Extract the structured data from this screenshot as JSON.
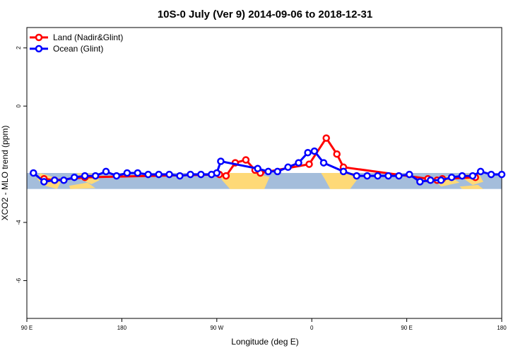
{
  "chart_data": {
    "type": "line",
    "title": "10S-0 July (Ver 9)   2014-09-06 to 2018-12-31",
    "xlabel": "Longitude (deg E)",
    "ylabel": "XCO2 - MLO trend (ppm)",
    "xlim": [
      90,
      450
    ],
    "ylim": [
      -7.3,
      2.7
    ],
    "x_ticks": [
      {
        "value": 90,
        "label": "90 E"
      },
      {
        "value": 162,
        "label": "180"
      },
      {
        "value": 234,
        "label": "90 W"
      },
      {
        "value": 306,
        "label": "0"
      },
      {
        "value": 378,
        "label": "90 E"
      },
      {
        "value": 450,
        "label": "180"
      }
    ],
    "y_ticks": [
      {
        "value": 2,
        "label": "2"
      },
      {
        "value": 0,
        "label": "0"
      },
      {
        "value": -4,
        "label": "-4"
      },
      {
        "value": -6,
        "label": "-6"
      }
    ],
    "grid": false,
    "legend_position": "top-left",
    "series": [
      {
        "name": "Land (Nadir&Glint)",
        "color": "#ff0000",
        "points": [
          [
            103,
            -2.5
          ],
          [
            111,
            -2.55
          ],
          [
            134,
            -2.45
          ],
          [
            236,
            -2.35
          ],
          [
            241,
            -2.4
          ],
          [
            248,
            -1.95
          ],
          [
            256,
            -1.85
          ],
          [
            263,
            -2.2
          ],
          [
            267,
            -2.3
          ],
          [
            304,
            -2.0
          ],
          [
            317,
            -1.1
          ],
          [
            325,
            -1.65
          ],
          [
            330,
            -2.1
          ],
          [
            394,
            -2.5
          ],
          [
            401,
            -2.55
          ],
          [
            405,
            -2.5
          ],
          [
            430,
            -2.45
          ]
        ]
      },
      {
        "name": "Ocean (Glint)",
        "color": "#0000ff",
        "points": [
          [
            95,
            -2.3
          ],
          [
            103,
            -2.6
          ],
          [
            111,
            -2.55
          ],
          [
            118,
            -2.55
          ],
          [
            126,
            -2.45
          ],
          [
            134,
            -2.4
          ],
          [
            142,
            -2.4
          ],
          [
            150,
            -2.25
          ],
          [
            158,
            -2.4
          ],
          [
            166,
            -2.3
          ],
          [
            174,
            -2.3
          ],
          [
            182,
            -2.35
          ],
          [
            190,
            -2.35
          ],
          [
            198,
            -2.35
          ],
          [
            206,
            -2.4
          ],
          [
            214,
            -2.35
          ],
          [
            222,
            -2.35
          ],
          [
            230,
            -2.35
          ],
          [
            234,
            -2.3
          ],
          [
            237,
            -1.9
          ],
          [
            265,
            -2.15
          ],
          [
            273,
            -2.25
          ],
          [
            280,
            -2.25
          ],
          [
            288,
            -2.1
          ],
          [
            296,
            -1.95
          ],
          [
            303,
            -1.6
          ],
          [
            308,
            -1.55
          ],
          [
            315,
            -1.95
          ],
          [
            330,
            -2.25
          ],
          [
            340,
            -2.4
          ],
          [
            348,
            -2.4
          ],
          [
            356,
            -2.4
          ],
          [
            364,
            -2.4
          ],
          [
            372,
            -2.4
          ],
          [
            380,
            -2.35
          ],
          [
            388,
            -2.6
          ],
          [
            396,
            -2.55
          ],
          [
            404,
            -2.55
          ],
          [
            412,
            -2.45
          ],
          [
            420,
            -2.4
          ],
          [
            428,
            -2.4
          ],
          [
            434,
            -2.25
          ],
          [
            442,
            -2.35
          ],
          [
            450,
            -2.35
          ]
        ]
      }
    ],
    "background_map": {
      "lat_top": -2.3,
      "lat_bottom": -2.85,
      "ocean_color": "#a4bddb",
      "land_color": "#fed977"
    }
  }
}
